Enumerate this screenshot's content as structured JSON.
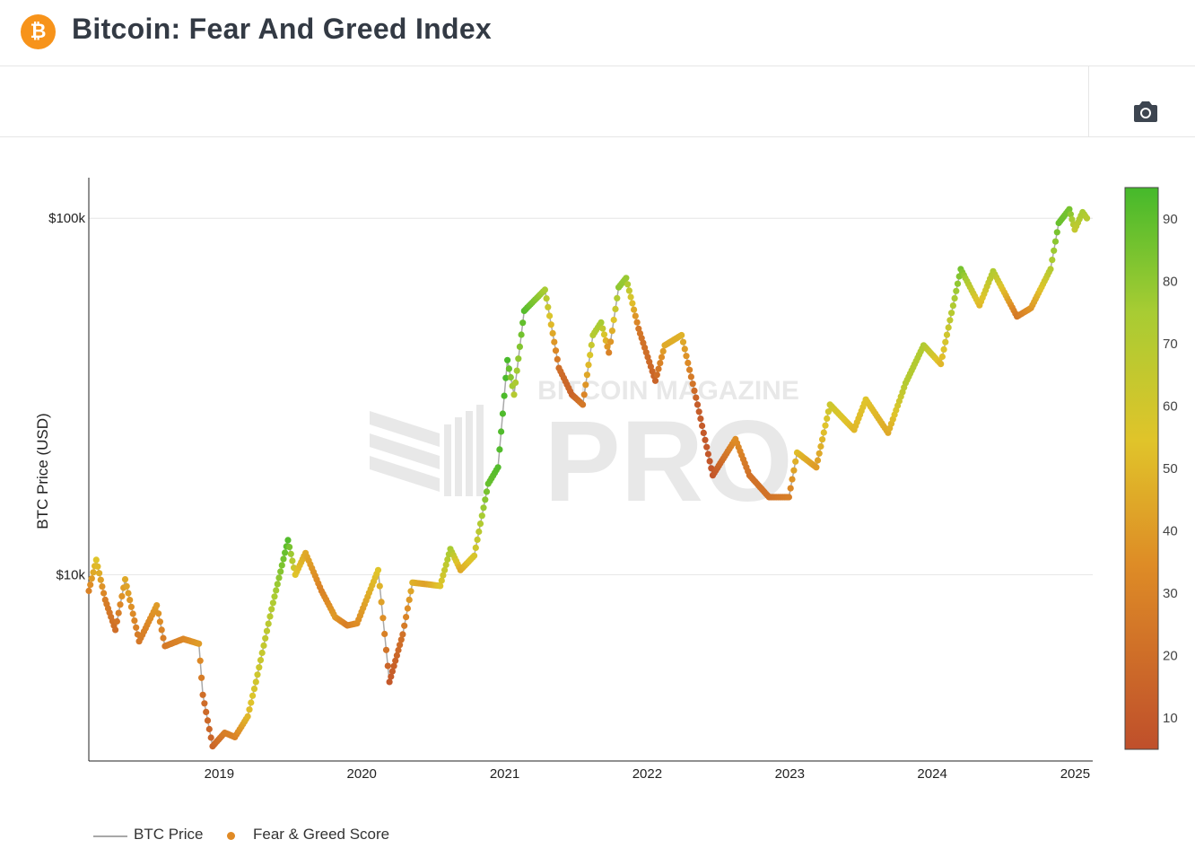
{
  "header": {
    "logo_glyph": "₿",
    "logo_icon": "bitcoin-icon",
    "title": "Bitcoin: Fear And Greed Index"
  },
  "toolbar": {
    "camera_icon": "camera-icon"
  },
  "colors": {
    "brand": "#f7931a",
    "price_line": "#a8a8a8",
    "scale_low": "#c0502a",
    "scale_mid": "#dcc62c",
    "scale_high": "#46bb2a"
  },
  "legend": {
    "price_label": "BTC Price",
    "score_label": "Fear & Greed Score"
  },
  "chart_data": {
    "type": "scatter",
    "title": "Bitcoin: Fear And Greed Index",
    "ylabel": "BTC Price (USD)",
    "y_scale": "log",
    "y_ticks": [
      {
        "value": 10000,
        "label": "$10k"
      },
      {
        "value": 100000,
        "label": "$100k"
      }
    ],
    "x_ticks": [
      "2019",
      "2020",
      "2021",
      "2022",
      "2023",
      "2024",
      "2025"
    ],
    "xlim": [
      "2018-02-01",
      "2025-02-15"
    ],
    "ylim": [
      3000,
      130000
    ],
    "grid": true,
    "legend_position": "bottom-left",
    "colorbar": {
      "min": 5,
      "max": 95,
      "ticks": [
        10,
        20,
        30,
        40,
        50,
        60,
        70,
        80,
        90
      ]
    },
    "series": [
      {
        "name": "BTC Price",
        "kind": "line",
        "points": [
          [
            "2018-02-01",
            9000
          ],
          [
            "2018-02-20",
            11000
          ],
          [
            "2018-03-15",
            8500
          ],
          [
            "2018-04-10",
            7000
          ],
          [
            "2018-05-05",
            9700
          ],
          [
            "2018-06-10",
            6500
          ],
          [
            "2018-07-25",
            8200
          ],
          [
            "2018-08-15",
            6300
          ],
          [
            "2018-10-01",
            6600
          ],
          [
            "2018-11-10",
            6400
          ],
          [
            "2018-11-20",
            4600
          ],
          [
            "2018-12-15",
            3300
          ],
          [
            "2019-01-15",
            3600
          ],
          [
            "2019-02-10",
            3500
          ],
          [
            "2019-03-15",
            4000
          ],
          [
            "2019-04-05",
            5000
          ],
          [
            "2019-05-15",
            8000
          ],
          [
            "2019-06-26",
            12500
          ],
          [
            "2019-07-15",
            10000
          ],
          [
            "2019-08-10",
            11500
          ],
          [
            "2019-09-20",
            9000
          ],
          [
            "2019-10-25",
            7600
          ],
          [
            "2019-11-25",
            7200
          ],
          [
            "2019-12-20",
            7300
          ],
          [
            "2020-02-12",
            10300
          ],
          [
            "2020-03-12",
            5000
          ],
          [
            "2020-04-15",
            6800
          ],
          [
            "2020-05-10",
            9500
          ],
          [
            "2020-06-15",
            9400
          ],
          [
            "2020-07-20",
            9300
          ],
          [
            "2020-08-15",
            11800
          ],
          [
            "2020-09-10",
            10300
          ],
          [
            "2020-10-15",
            11300
          ],
          [
            "2020-11-20",
            18000
          ],
          [
            "2020-12-15",
            20000
          ],
          [
            "2021-01-08",
            40000
          ],
          [
            "2021-01-25",
            32000
          ],
          [
            "2021-02-20",
            55000
          ],
          [
            "2021-04-14",
            63000
          ],
          [
            "2021-05-20",
            38000
          ],
          [
            "2021-06-22",
            32000
          ],
          [
            "2021-07-20",
            30000
          ],
          [
            "2021-08-15",
            47000
          ],
          [
            "2021-09-05",
            51000
          ],
          [
            "2021-09-25",
            42000
          ],
          [
            "2021-10-20",
            64000
          ],
          [
            "2021-11-08",
            68000
          ],
          [
            "2021-12-10",
            49000
          ],
          [
            "2022-01-22",
            35000
          ],
          [
            "2022-02-15",
            44000
          ],
          [
            "2022-03-30",
            47000
          ],
          [
            "2022-05-10",
            30000
          ],
          [
            "2022-06-18",
            19000
          ],
          [
            "2022-08-15",
            24000
          ],
          [
            "2022-09-20",
            19000
          ],
          [
            "2022-11-09",
            16500
          ],
          [
            "2022-12-30",
            16500
          ],
          [
            "2023-01-20",
            22000
          ],
          [
            "2023-03-10",
            20000
          ],
          [
            "2023-04-14",
            30000
          ],
          [
            "2023-06-15",
            25500
          ],
          [
            "2023-07-15",
            31000
          ],
          [
            "2023-09-10",
            25000
          ],
          [
            "2023-10-25",
            34500
          ],
          [
            "2023-12-10",
            44000
          ],
          [
            "2024-01-23",
            39000
          ],
          [
            "2024-03-14",
            72000
          ],
          [
            "2024-05-01",
            57000
          ],
          [
            "2024-06-05",
            71000
          ],
          [
            "2024-08-05",
            53000
          ],
          [
            "2024-09-10",
            56000
          ],
          [
            "2024-10-30",
            72000
          ],
          [
            "2024-11-20",
            97000
          ],
          [
            "2024-12-17",
            106000
          ],
          [
            "2024-12-31",
            93000
          ],
          [
            "2025-01-20",
            104000
          ],
          [
            "2025-01-31",
            100000
          ]
        ]
      },
      {
        "name": "Fear & Greed Score",
        "kind": "markers",
        "points": [
          [
            "2018-02-01",
            9000,
            30
          ],
          [
            "2018-02-20",
            11000,
            55
          ],
          [
            "2018-03-15",
            8500,
            28
          ],
          [
            "2018-04-10",
            7000,
            20
          ],
          [
            "2018-05-05",
            9700,
            45
          ],
          [
            "2018-06-10",
            6500,
            25
          ],
          [
            "2018-07-25",
            8200,
            40
          ],
          [
            "2018-08-15",
            6300,
            25
          ],
          [
            "2018-10-01",
            6600,
            32
          ],
          [
            "2018-11-10",
            6400,
            40
          ],
          [
            "2018-11-20",
            4600,
            20
          ],
          [
            "2018-12-15",
            3300,
            15
          ],
          [
            "2019-01-15",
            3600,
            28
          ],
          [
            "2019-02-10",
            3500,
            30
          ],
          [
            "2019-03-15",
            4000,
            50
          ],
          [
            "2019-04-05",
            5000,
            60
          ],
          [
            "2019-05-15",
            8000,
            70
          ],
          [
            "2019-06-26",
            12500,
            92
          ],
          [
            "2019-07-15",
            10000,
            55
          ],
          [
            "2019-08-10",
            11500,
            45
          ],
          [
            "2019-09-20",
            9000,
            30
          ],
          [
            "2019-10-25",
            7600,
            40
          ],
          [
            "2019-11-25",
            7200,
            28
          ],
          [
            "2019-12-20",
            7300,
            35
          ],
          [
            "2020-02-12",
            10300,
            55
          ],
          [
            "2020-03-12",
            5000,
            10
          ],
          [
            "2020-04-15",
            6800,
            22
          ],
          [
            "2020-05-10",
            9500,
            48
          ],
          [
            "2020-06-15",
            9400,
            42
          ],
          [
            "2020-07-20",
            9300,
            55
          ],
          [
            "2020-08-15",
            11800,
            75
          ],
          [
            "2020-09-10",
            10300,
            45
          ],
          [
            "2020-10-15",
            11300,
            58
          ],
          [
            "2020-11-20",
            18000,
            88
          ],
          [
            "2020-12-15",
            20000,
            92
          ],
          [
            "2021-01-08",
            40000,
            94
          ],
          [
            "2021-01-25",
            32000,
            70
          ],
          [
            "2021-02-20",
            55000,
            92
          ],
          [
            "2021-04-14",
            63000,
            75
          ],
          [
            "2021-05-20",
            38000,
            20
          ],
          [
            "2021-06-22",
            32000,
            15
          ],
          [
            "2021-07-20",
            30000,
            25
          ],
          [
            "2021-08-15",
            47000,
            70
          ],
          [
            "2021-09-05",
            51000,
            75
          ],
          [
            "2021-09-25",
            42000,
            30
          ],
          [
            "2021-10-20",
            64000,
            80
          ],
          [
            "2021-11-08",
            68000,
            78
          ],
          [
            "2021-12-10",
            49000,
            25
          ],
          [
            "2022-01-22",
            35000,
            15
          ],
          [
            "2022-02-15",
            44000,
            45
          ],
          [
            "2022-03-30",
            47000,
            48
          ],
          [
            "2022-05-10",
            30000,
            12
          ],
          [
            "2022-06-18",
            19000,
            8
          ],
          [
            "2022-08-15",
            24000,
            35
          ],
          [
            "2022-09-20",
            19000,
            22
          ],
          [
            "2022-11-09",
            16500,
            22
          ],
          [
            "2022-12-30",
            16500,
            28
          ],
          [
            "2023-01-20",
            22000,
            52
          ],
          [
            "2023-03-10",
            20000,
            40
          ],
          [
            "2023-04-14",
            30000,
            62
          ],
          [
            "2023-06-15",
            25500,
            50
          ],
          [
            "2023-07-15",
            31000,
            55
          ],
          [
            "2023-09-10",
            25000,
            45
          ],
          [
            "2023-10-25",
            34500,
            70
          ],
          [
            "2023-12-10",
            44000,
            72
          ],
          [
            "2024-01-23",
            39000,
            50
          ],
          [
            "2024-03-14",
            72000,
            85
          ],
          [
            "2024-05-01",
            57000,
            50
          ],
          [
            "2024-06-05",
            71000,
            72
          ],
          [
            "2024-08-05",
            53000,
            25
          ],
          [
            "2024-09-10",
            56000,
            38
          ],
          [
            "2024-10-30",
            72000,
            70
          ],
          [
            "2024-11-20",
            97000,
            88
          ],
          [
            "2024-12-17",
            106000,
            85
          ],
          [
            "2024-12-31",
            93000,
            65
          ],
          [
            "2025-01-20",
            104000,
            75
          ],
          [
            "2025-01-31",
            100000,
            70
          ]
        ]
      }
    ]
  }
}
